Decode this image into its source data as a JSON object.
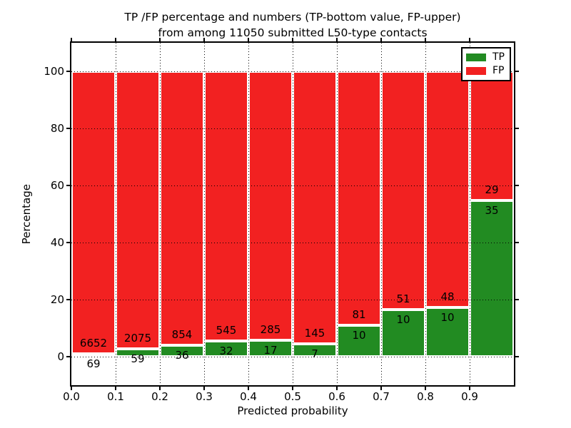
{
  "title": {
    "line1": "TP /FP percentage and numbers (TP-bottom value, FP-upper)",
    "line2": "from among 11050 submitted L50-type contacts"
  },
  "axes": {
    "xlabel": "Predicted probability",
    "ylabel": "Percentage",
    "x_ticks": [
      "0.0",
      "0.1",
      "0.2",
      "0.3",
      "0.4",
      "0.5",
      "0.6",
      "0.7",
      "0.8",
      "0.9"
    ],
    "y_ticks": [
      "0",
      "20",
      "40",
      "60",
      "80",
      "100"
    ]
  },
  "legend": {
    "items": [
      {
        "label": "TP",
        "color": "#228b22"
      },
      {
        "label": "FP",
        "color": "#f22121"
      }
    ]
  },
  "colors": {
    "tp_green": "#228b22",
    "fp_red": "#f22121",
    "bar_edge": "#ffffff",
    "grid": "#000000",
    "background": "#ffffff"
  },
  "chart_data": {
    "type": "bar",
    "stacked": true,
    "normalized_to_percent": 100,
    "title": "TP /FP percentage and numbers (TP-bottom value, FP-upper) from among 11050 submitted L50-type contacts",
    "xlabel": "Predicted probability",
    "ylabel": "Percentage",
    "xlim": [
      0.0,
      1.0
    ],
    "ylim": [
      -10,
      110
    ],
    "x_tick_values": [
      0.0,
      0.1,
      0.2,
      0.3,
      0.4,
      0.5,
      0.6,
      0.7,
      0.8,
      0.9
    ],
    "y_tick_values": [
      0,
      20,
      40,
      60,
      80,
      100
    ],
    "bin_start": [
      0.0,
      0.1,
      0.2,
      0.3,
      0.4,
      0.5,
      0.6,
      0.7,
      0.8,
      0.9
    ],
    "bin_width": 0.1,
    "series": [
      {
        "name": "TP",
        "color": "#228b22",
        "counts": [
          69,
          59,
          36,
          32,
          17,
          7,
          10,
          10,
          10,
          35
        ],
        "percent": [
          1.03,
          2.76,
          4.04,
          5.55,
          5.63,
          4.61,
          10.99,
          16.39,
          17.24,
          54.69
        ]
      },
      {
        "name": "FP",
        "color": "#f22121",
        "counts": [
          6652,
          2075,
          854,
          545,
          285,
          145,
          81,
          51,
          48,
          29
        ],
        "percent": [
          98.97,
          97.24,
          95.96,
          94.45,
          94.37,
          95.39,
          89.01,
          83.61,
          82.76,
          45.31
        ]
      }
    ],
    "total_contacts": 11050,
    "legend_position": "upper right",
    "grid": "dotted, drawn above bars"
  }
}
